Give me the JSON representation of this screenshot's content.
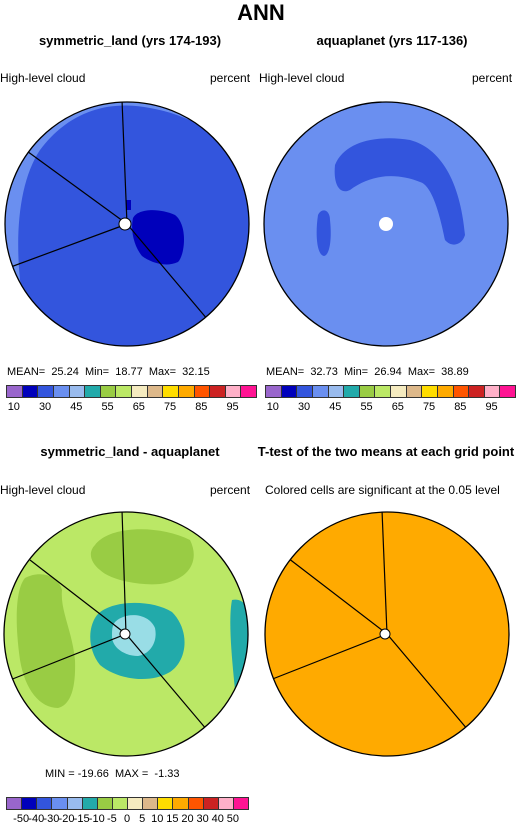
{
  "title": "ANN",
  "panels": [
    {
      "title": "symmetric_land (yrs 174-193)",
      "left_label": "High-level cloud",
      "right_label": "percent",
      "stats": "MEAN=  25.24  Min=  18.77  Max=  32.15"
    },
    {
      "title": "aquaplanet (yrs 117-136)",
      "left_label": "High-level cloud",
      "right_label": "percent",
      "stats": "MEAN=  32.73  Min=  26.94  Max=  38.89"
    },
    {
      "title": "symmetric_land - aquaplanet",
      "left_label": "High-level cloud",
      "right_label": "percent",
      "stats": "MIN = -19.66  MAX =  -1.33"
    },
    {
      "title": "T-test of the two means at each grid point",
      "left_label": "Colored cells are significant at the 0.05 level",
      "right_label": "",
      "stats": ""
    }
  ],
  "colorbar_top": {
    "colors": [
      "#9966cc",
      "#0000bb",
      "#3355dd",
      "#6a8ff0",
      "#99bbee",
      "#22aaaa",
      "#99cc44",
      "#bbe866",
      "#f5ebc0",
      "#ddb88a",
      "#ffdd00",
      "#ffaa00",
      "#ff5500",
      "#cc2222",
      "#ffb0c8",
      "#ff1493"
    ],
    "labels": [
      "10",
      "30",
      "45",
      "55",
      "65",
      "75",
      "85",
      "95"
    ]
  },
  "colorbar_bottom": {
    "colors": [
      "#9966cc",
      "#0000bb",
      "#3355dd",
      "#6a8ff0",
      "#99bbee",
      "#22aaaa",
      "#99cc44",
      "#bbe866",
      "#f5ebc0",
      "#ddb88a",
      "#ffdd00",
      "#ffaa00",
      "#ff5500",
      "#cc2222",
      "#ffb0c8",
      "#ff1493"
    ],
    "labels": [
      "-50",
      "-40",
      "-30",
      "-20",
      "-15",
      "-10",
      "-5",
      "0",
      "5",
      "10",
      "15",
      "20",
      "30",
      "40",
      "50"
    ]
  },
  "chart_data": [
    {
      "type": "heatmap",
      "projection": "polar",
      "title": "symmetric_land (yrs 174-193)",
      "variable": "High-level cloud",
      "units": "percent",
      "mean": 25.24,
      "min": 18.77,
      "max": 32.15,
      "levels": [
        10,
        30,
        45,
        55,
        65,
        75,
        85,
        95
      ]
    },
    {
      "type": "heatmap",
      "projection": "polar",
      "title": "aquaplanet (yrs 117-136)",
      "variable": "High-level cloud",
      "units": "percent",
      "mean": 32.73,
      "min": 26.94,
      "max": 38.89,
      "levels": [
        10,
        30,
        45,
        55,
        65,
        75,
        85,
        95
      ]
    },
    {
      "type": "heatmap",
      "projection": "polar",
      "title": "symmetric_land - aquaplanet",
      "variable": "High-level cloud",
      "units": "percent",
      "min": -19.66,
      "max": -1.33,
      "levels": [
        -50,
        -40,
        -30,
        -20,
        -15,
        -10,
        -5,
        0,
        5,
        10,
        15,
        20,
        30,
        40,
        50
      ]
    },
    {
      "type": "heatmap",
      "projection": "polar",
      "title": "T-test of the two means at each grid point",
      "note": "Colored cells are significant at the 0.05 level"
    }
  ]
}
